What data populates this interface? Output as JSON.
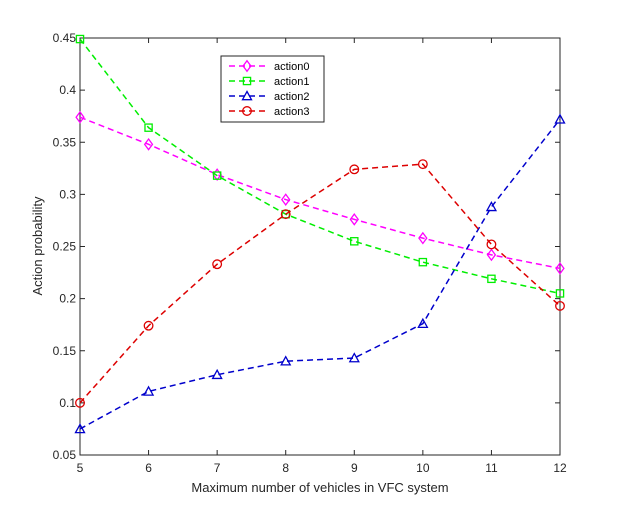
{
  "chart_data": {
    "type": "line",
    "xlabel": "Maximum number of vehicles in VFC system",
    "ylabel": "Action probability",
    "x": [
      5,
      6,
      7,
      8,
      9,
      10,
      11,
      12
    ],
    "xlim": [
      5,
      12
    ],
    "ylim": [
      0.05,
      0.45
    ],
    "xticks": [
      "5",
      "6",
      "7",
      "8",
      "9",
      "10",
      "11",
      "12"
    ],
    "yticks": [
      "0.05",
      "0.1",
      "0.15",
      "0.2",
      "0.25",
      "0.3",
      "0.35",
      "0.4",
      "0.45"
    ],
    "grid": false,
    "legend_position": "top-left-inside",
    "series": [
      {
        "name": "action0",
        "color": "#ff00ff",
        "marker": "diamond",
        "values": [
          0.374,
          0.348,
          0.319,
          0.295,
          0.276,
          0.258,
          0.242,
          0.229
        ]
      },
      {
        "name": "action1",
        "color": "#00ee00",
        "marker": "square",
        "values": [
          0.449,
          0.364,
          0.318,
          0.281,
          0.255,
          0.235,
          0.219,
          0.205
        ]
      },
      {
        "name": "action2",
        "color": "#0000cc",
        "marker": "triangle",
        "values": [
          0.075,
          0.111,
          0.127,
          0.14,
          0.143,
          0.176,
          0.288,
          0.372
        ]
      },
      {
        "name": "action3",
        "color": "#dd0000",
        "marker": "circle",
        "values": [
          0.1,
          0.174,
          0.233,
          0.281,
          0.324,
          0.329,
          0.252,
          0.193
        ]
      }
    ]
  }
}
